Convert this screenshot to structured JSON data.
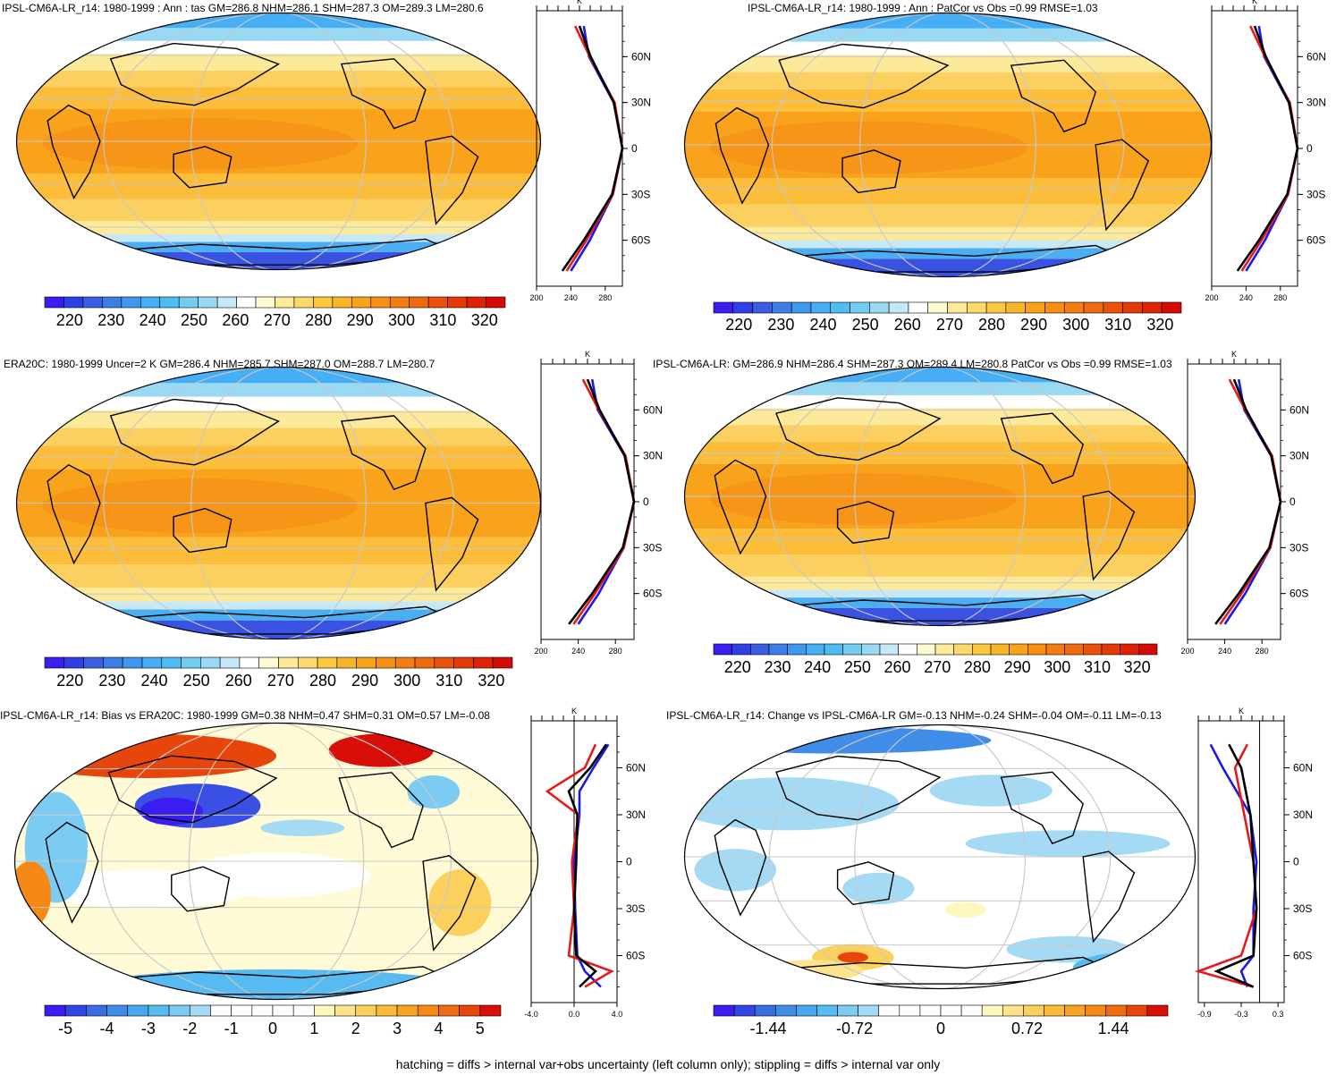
{
  "footer": "hatching = diffs > internal var+obs uncertainty (left column only); stippling = diffs > internal var only",
  "panels": [
    {
      "title": "IPSL-CM6A-LR_r14: 1980-1999 : Ann : tas GM=286.8 NHM=286.1 SHM=287.3 OM=289.3 LM=280.6",
      "map_type": "abs",
      "cbar_labels": [
        "220",
        "230",
        "240",
        "250",
        "260",
        "270",
        "280",
        "290",
        "300",
        "310",
        "320"
      ],
      "profile": {
        "unit": "K",
        "x_ticks": [
          "200",
          "240",
          "280"
        ],
        "lat_ticks": [
          "60N",
          "30N",
          "0",
          "30S",
          "60S"
        ]
      }
    },
    {
      "title": "IPSL-CM6A-LR_r14: 1980-1999 : Ann : PatCor vs Obs =0.99 RMSE=1.03",
      "map_type": "abs",
      "cbar_labels": [
        "220",
        "230",
        "240",
        "250",
        "260",
        "270",
        "280",
        "290",
        "300",
        "310",
        "320"
      ],
      "profile": {
        "unit": "K",
        "x_ticks": [
          "200",
          "240",
          "280"
        ],
        "lat_ticks": [
          "60N",
          "30N",
          "0",
          "30S",
          "60S"
        ]
      }
    },
    {
      "title": "ERA20C: 1980-1999 Uncer=2 K GM=286.4 NHM=285.7 SHM=287.0 OM=288.7 LM=280.7",
      "map_type": "abs",
      "cbar_labels": [
        "220",
        "230",
        "240",
        "250",
        "260",
        "270",
        "280",
        "290",
        "300",
        "310",
        "320"
      ],
      "profile": {
        "unit": "K",
        "x_ticks": [
          "200",
          "240",
          "280"
        ],
        "lat_ticks": [
          "60N",
          "30N",
          "0",
          "30S",
          "60S"
        ]
      }
    },
    {
      "title": "IPSL-CM6A-LR: GM=286.9 NHM=286.4 SHM=287.3 OM=289.4 LM=280.8 PatCor vs Obs =0.99 RMSE=1.03",
      "map_type": "abs",
      "cbar_labels": [
        "220",
        "230",
        "240",
        "250",
        "260",
        "270",
        "280",
        "290",
        "300",
        "310",
        "320"
      ],
      "profile": {
        "unit": "K",
        "x_ticks": [
          "200",
          "240",
          "280"
        ],
        "lat_ticks": [
          "60N",
          "30N",
          "0",
          "30S",
          "60S"
        ]
      }
    },
    {
      "title": "IPSL-CM6A-LR_r14: Bias vs ERA20C: 1980-1999 GM=0.38 NHM=0.47 SHM=0.31 OM=0.57 LM=-0.08",
      "map_type": "bias",
      "cbar_labels": [
        "-5",
        "-4",
        "-3",
        "-2",
        "-1",
        "0",
        "1",
        "2",
        "3",
        "4",
        "5"
      ],
      "profile": {
        "unit": "K",
        "x_ticks": [
          "-4.0",
          "0.0",
          "4.0"
        ],
        "lat_ticks": [
          "60N",
          "30N",
          "0",
          "30S",
          "60S"
        ]
      }
    },
    {
      "title": "IPSL-CM6A-LR_r14: Change vs IPSL-CM6A-LR GM=-0.13 NHM=-0.24 SHM=-0.04 OM=-0.11 LM=-0.13",
      "map_type": "change",
      "cbar_labels": [
        "-1.44",
        "-0.72",
        "0",
        "0.72",
        "1.44"
      ],
      "profile": {
        "unit": "K",
        "x_ticks": [
          "-0.9",
          "-0.3",
          "0.3"
        ],
        "lat_ticks": [
          "60N",
          "30N",
          "0",
          "30S",
          "60S"
        ]
      }
    }
  ],
  "chart_data": [
    {
      "type": "heatmap",
      "title": "IPSL-CM6A-LR_r14: 1980-1999 : Ann : tas",
      "stats": {
        "GM": 286.8,
        "NHM": 286.1,
        "SHM": 287.3,
        "OM": 289.3,
        "LM": 280.6
      },
      "colorbar": [
        220,
        230,
        240,
        250,
        260,
        270,
        280,
        290,
        300,
        310,
        320
      ],
      "profile_x_range": [
        200,
        300
      ],
      "profile_lat": [
        -80,
        -60,
        -30,
        0,
        30,
        60,
        80
      ],
      "profile_model": [
        230,
        255,
        288,
        300,
        290,
        263,
        250
      ],
      "profile_obs": [
        235,
        258,
        289,
        300,
        291,
        262,
        245
      ],
      "profile_ref": [
        240,
        262,
        289,
        300,
        290,
        261,
        255
      ]
    },
    {
      "type": "heatmap",
      "title": "PatCor vs Obs",
      "stats": {
        "PatCor": 0.99,
        "RMSE": 1.03
      },
      "colorbar": [
        220,
        230,
        240,
        250,
        260,
        270,
        280,
        290,
        300,
        310,
        320
      ],
      "profile_x_range": [
        200,
        300
      ],
      "profile_lat": [
        -80,
        -60,
        -30,
        0,
        30,
        60,
        80
      ],
      "profile_model": [
        230,
        255,
        288,
        300,
        290,
        263,
        250
      ],
      "profile_obs": [
        235,
        258,
        289,
        300,
        291,
        262,
        245
      ],
      "profile_ref": [
        240,
        262,
        289,
        300,
        290,
        261,
        255
      ]
    },
    {
      "type": "heatmap",
      "title": "ERA20C: 1980-1999",
      "stats": {
        "Uncer": 2,
        "GM": 286.4,
        "NHM": 285.7,
        "SHM": 287.0,
        "OM": 288.7,
        "LM": 280.7
      },
      "colorbar": [
        220,
        230,
        240,
        250,
        260,
        270,
        280,
        290,
        300,
        310,
        320
      ],
      "profile_x_range": [
        200,
        300
      ],
      "profile_lat": [
        -80,
        -60,
        -30,
        0,
        30,
        60,
        80
      ],
      "profile_model": [
        230,
        255,
        288,
        300,
        290,
        263,
        250
      ],
      "profile_obs": [
        235,
        258,
        289,
        300,
        291,
        262,
        245
      ],
      "profile_ref": [
        240,
        262,
        289,
        300,
        290,
        261,
        255
      ]
    },
    {
      "type": "heatmap",
      "title": "IPSL-CM6A-LR",
      "stats": {
        "GM": 286.9,
        "NHM": 286.4,
        "SHM": 287.3,
        "OM": 289.4,
        "LM": 280.8,
        "PatCor": 0.99,
        "RMSE": 1.03
      },
      "colorbar": [
        220,
        230,
        240,
        250,
        260,
        270,
        280,
        290,
        300,
        310,
        320
      ],
      "profile_x_range": [
        200,
        300
      ],
      "profile_lat": [
        -80,
        -60,
        -30,
        0,
        30,
        60,
        80
      ],
      "profile_model": [
        230,
        255,
        288,
        300,
        290,
        263,
        250
      ],
      "profile_obs": [
        235,
        258,
        289,
        300,
        291,
        262,
        245
      ],
      "profile_ref": [
        240,
        262,
        289,
        300,
        290,
        261,
        255
      ]
    },
    {
      "type": "heatmap",
      "title": "Bias vs ERA20C",
      "stats": {
        "GM": 0.38,
        "NHM": 0.47,
        "SHM": 0.31,
        "OM": 0.57,
        "LM": -0.08
      },
      "colorbar": [
        -5,
        -4,
        -3,
        -2,
        -1,
        0,
        1,
        2,
        3,
        4,
        5
      ],
      "profile_x_range": [
        -4,
        4
      ],
      "profile_lat": [
        -80,
        -70,
        -60,
        -30,
        0,
        30,
        45,
        60,
        75
      ],
      "profile_model": [
        0.5,
        2.0,
        0.2,
        0.0,
        0.2,
        0.3,
        -0.5,
        1.5,
        3.0
      ],
      "profile_obs": [
        1.0,
        3.5,
        -0.5,
        0.0,
        -0.2,
        0.4,
        -2.5,
        1.0,
        2.0
      ],
      "profile_ref": [
        2.5,
        1.0,
        0.3,
        0.1,
        0.0,
        0.5,
        0.5,
        1.8,
        3.2
      ]
    },
    {
      "type": "heatmap",
      "title": "Change vs IPSL-CM6A-LR",
      "stats": {
        "GM": -0.13,
        "NHM": -0.24,
        "SHM": -0.04,
        "OM": -0.11,
        "LM": -0.13
      },
      "colorbar": [
        -1.44,
        -0.72,
        0,
        0.72,
        1.44
      ],
      "profile_x_range": [
        -1.0,
        0.4
      ],
      "profile_lat": [
        -80,
        -70,
        -60,
        -30,
        0,
        30,
        60,
        75
      ],
      "profile_model": [
        -0.1,
        -0.7,
        -0.1,
        -0.05,
        -0.1,
        -0.15,
        -0.3,
        -0.5
      ],
      "profile_obs": [
        -0.1,
        -1.0,
        -0.3,
        -0.05,
        -0.1,
        -0.25,
        -0.4,
        -0.2
      ],
      "profile_ref": [
        -0.2,
        -0.3,
        -0.1,
        -0.1,
        -0.05,
        -0.15,
        -0.6,
        -0.8
      ]
    }
  ]
}
